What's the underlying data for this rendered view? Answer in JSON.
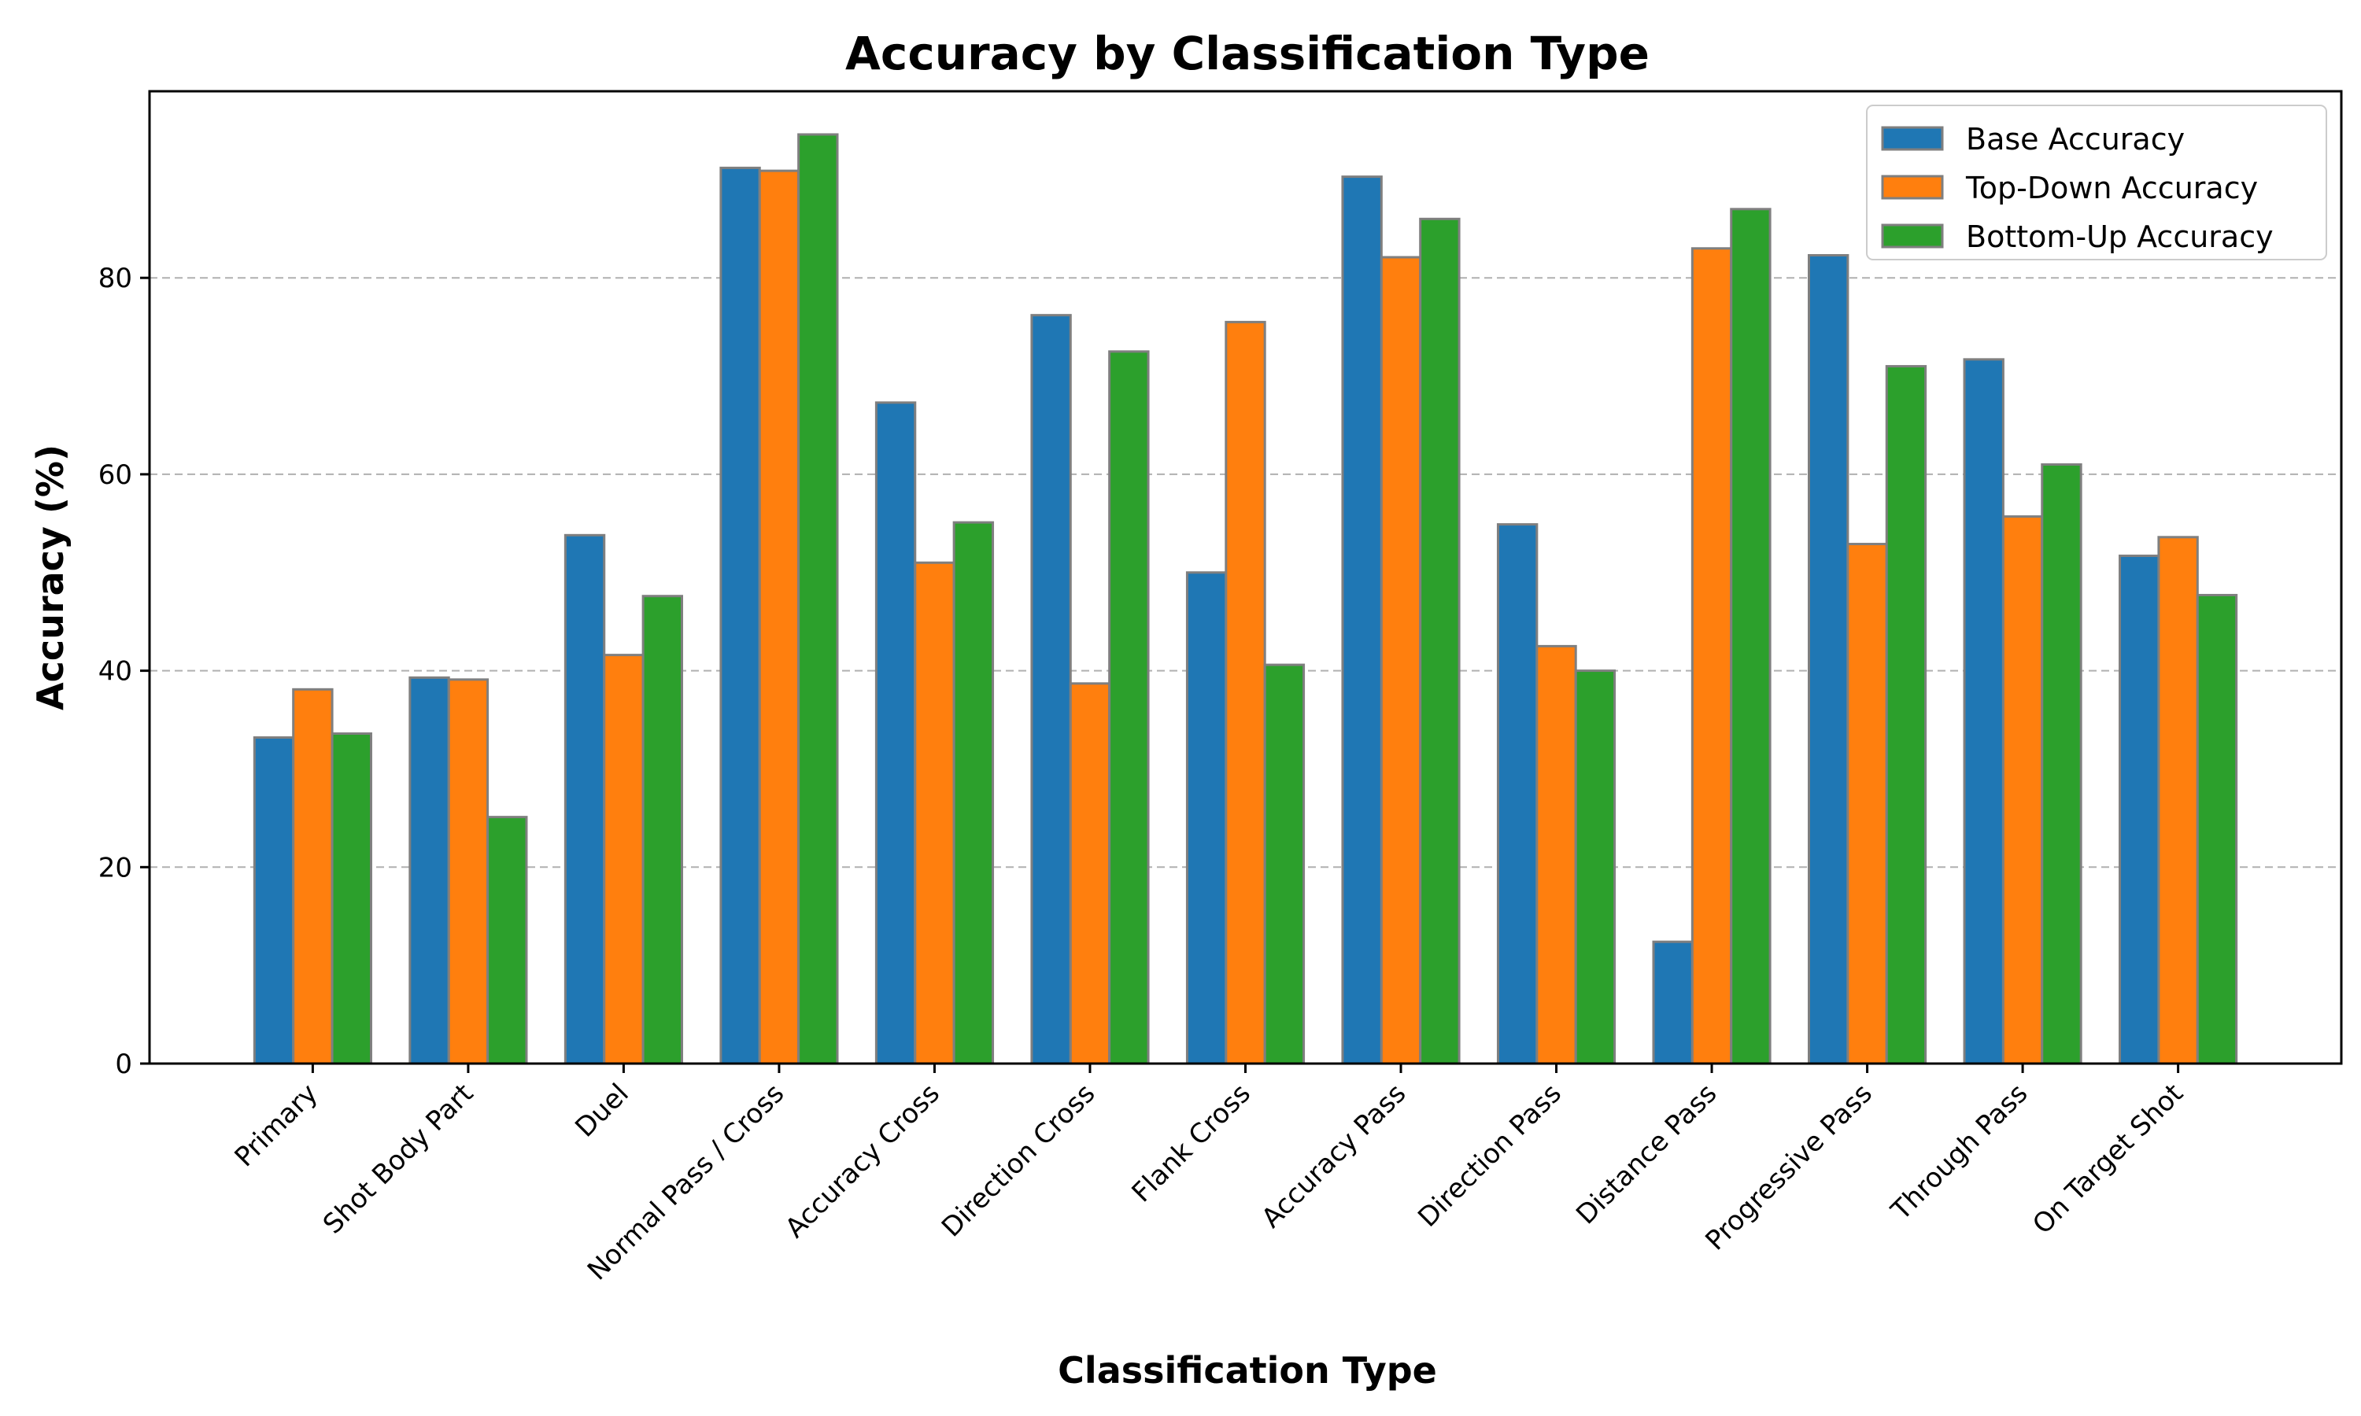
{
  "chart_data": {
    "type": "bar",
    "title": "Accuracy by Classification Type",
    "xlabel": "Classification Type",
    "ylabel": "Accuracy (%)",
    "ylim": [
      0,
      99
    ],
    "yticks": [
      0,
      20,
      40,
      60,
      80
    ],
    "grid": "y-dashed",
    "legend_position": "top-right",
    "categories": [
      "Primary",
      "Shot Body Part",
      "Duel",
      "Normal Pass / Cross",
      "Accuracy Cross",
      "Direction Cross",
      "Flank Cross",
      "Accuracy Pass",
      "Direction Pass",
      "Distance Pass",
      "Progressive Pass",
      "Through Pass",
      "On Target Shot"
    ],
    "series": [
      {
        "name": "Base Accuracy",
        "color": "#1f77b4",
        "values": [
          33.2,
          39.3,
          53.8,
          91.2,
          67.3,
          76.2,
          50.0,
          90.3,
          54.9,
          12.4,
          82.3,
          71.7,
          51.7
        ]
      },
      {
        "name": "Top-Down Accuracy",
        "color": "#ff7f0e",
        "values": [
          38.1,
          39.1,
          41.6,
          90.9,
          51.0,
          38.7,
          75.5,
          82.1,
          42.5,
          83.0,
          52.9,
          55.7,
          53.6
        ]
      },
      {
        "name": "Bottom-Up Accuracy",
        "color": "#2ca02c",
        "values": [
          33.6,
          25.1,
          47.6,
          94.6,
          55.1,
          72.5,
          40.6,
          86.0,
          40.0,
          87.0,
          71.0,
          61.0,
          47.7
        ]
      }
    ]
  }
}
